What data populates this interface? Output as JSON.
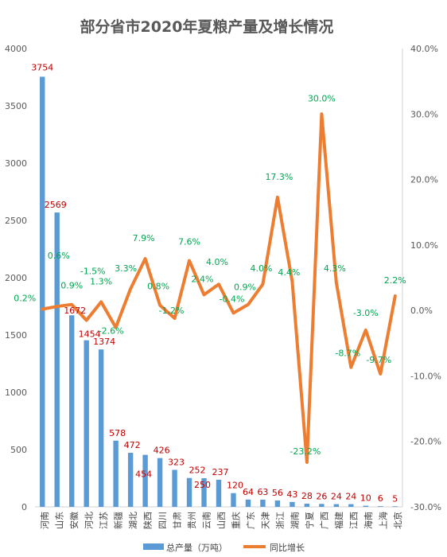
{
  "colors": {
    "bar": "#5b9bd5",
    "line": "#ed7d31",
    "value_label": "#c00000",
    "pct_label": "#00a651",
    "axis": "#d0d0d0",
    "text": "#595959"
  },
  "chart_data": {
    "type": "bar",
    "title": "部分省市2020年夏粮产量及增长情况",
    "grid": false,
    "legend_position": "bottom",
    "categories": [
      "河南",
      "山东",
      "安徽",
      "河北",
      "江苏",
      "新疆",
      "湖北",
      "陕西",
      "四川",
      "甘肃",
      "贵州",
      "云南",
      "山西",
      "重庆",
      "广东",
      "天津",
      "浙江",
      "湖南",
      "宁夏",
      "广西",
      "福建",
      "江西",
      "海南",
      "上海",
      "北京"
    ],
    "left_axis": {
      "ylim": [
        0,
        4000
      ],
      "ticks": [
        "0",
        "500",
        "1000",
        "1500",
        "2000",
        "2500",
        "3000",
        "3500",
        "4000"
      ]
    },
    "right_axis": {
      "ylim": [
        -30,
        40
      ],
      "ticks": [
        "-30.0%",
        "-20.0%",
        "-10.0%",
        "0.0%",
        "10.0%",
        "20.0%",
        "30.0%",
        "40.0%"
      ]
    },
    "series": [
      {
        "name": "总产量（万吨）",
        "type": "bar",
        "axis": "left",
        "values": [
          3754,
          2569,
          1672,
          1454,
          1374,
          578,
          472,
          454,
          426,
          323,
          252,
          250,
          237,
          120,
          64,
          63,
          56,
          43,
          28,
          26,
          24,
          24,
          10,
          6,
          5
        ],
        "labels": [
          "3754",
          "2569",
          "1672",
          "1454",
          "1374",
          "578",
          "472",
          "454",
          "426",
          "323",
          "252",
          "250",
          "237",
          "120",
          "64",
          "63",
          "56",
          "43",
          "28",
          "26",
          "24",
          "24",
          "10",
          "6",
          "5"
        ]
      },
      {
        "name": "同比增长",
        "type": "line",
        "axis": "right",
        "values": [
          0.2,
          0.6,
          0.9,
          -1.5,
          1.3,
          -2.6,
          3.3,
          7.9,
          0.8,
          -1.2,
          7.6,
          2.4,
          4.0,
          -0.4,
          0.9,
          4.0,
          17.3,
          4.4,
          -23.2,
          30.0,
          4.3,
          -8.7,
          -3.0,
          -9.7,
          2.2
        ],
        "labels": [
          "0.2%",
          "0.6%",
          "0.9%",
          "-1.5%",
          "1.3%",
          "-2.6%",
          "3.3%",
          "7.9%",
          "0.8%",
          "-1.2%",
          "7.6%",
          "2.4%",
          "4.0%",
          "-0.4%",
          "0.9%",
          "4.0%",
          "17.3%",
          "4.4%",
          "-23.2%",
          "30.0%",
          "4.3%",
          "-8.7%",
          "-3.0%",
          "-9.7%",
          "2.2%"
        ]
      }
    ]
  }
}
